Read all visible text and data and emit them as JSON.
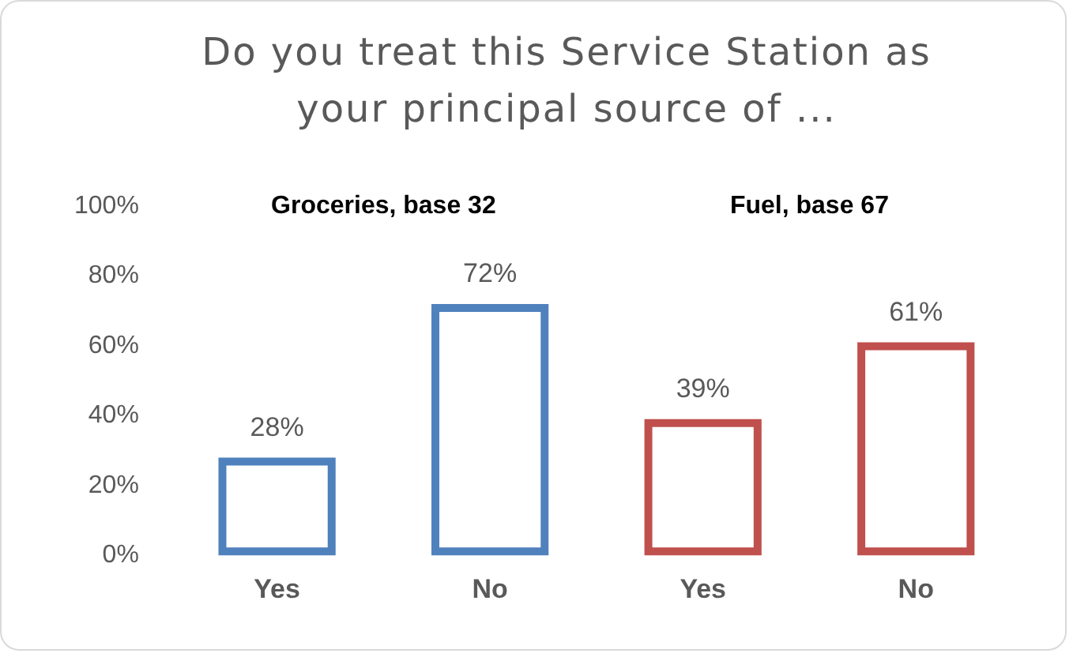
{
  "chart_data": {
    "type": "bar",
    "title": "Do you treat this Service Station as your principal source of ...",
    "categories": [
      "Yes",
      "No",
      "Yes",
      "No"
    ],
    "series": [
      {
        "colors": [
          "#4f81bd",
          "#4f81bd",
          "#c0504d",
          "#c0504d"
        ],
        "values": [
          28,
          72,
          39,
          61
        ]
      }
    ],
    "ylim": [
      0,
      100
    ],
    "yticks": [
      {
        "value": 0,
        "label": "0%"
      },
      {
        "value": 20,
        "label": "20%"
      },
      {
        "value": 40,
        "label": "40%"
      },
      {
        "value": 60,
        "label": "60%"
      },
      {
        "value": 80,
        "label": "80%"
      },
      {
        "value": 100,
        "label": "100%"
      }
    ],
    "value_labels": [
      "28%",
      "72%",
      "39%",
      "61%"
    ],
    "annotations": [
      "Groceries, base 32",
      "Fuel, base 67"
    ],
    "grid": false,
    "legend": false
  }
}
